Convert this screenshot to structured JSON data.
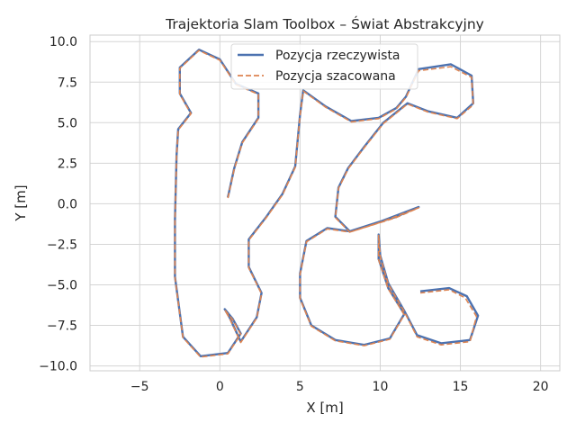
{
  "chart_data": {
    "type": "line",
    "title": "Trajektoria Slam Toolbox – Świat Abstrakcyjny",
    "xlabel": "X [m]",
    "ylabel": "Y [m]",
    "xlim": [
      -8.1,
      21.2
    ],
    "ylim": [
      -10.3,
      10.4
    ],
    "xticks": [
      -5,
      0,
      5,
      10,
      15,
      20
    ],
    "yticks": [
      -10.0,
      -7.5,
      -5.0,
      -2.5,
      0.0,
      2.5,
      5.0,
      7.5,
      10.0
    ],
    "xtick_labels": [
      "−5",
      "0",
      "5",
      "10",
      "15",
      "20"
    ],
    "ytick_labels": [
      "−10.0",
      "−7.5",
      "−5.0",
      "−2.5",
      "0.0",
      "2.5",
      "5.0",
      "7.5",
      "10.0"
    ],
    "grid": true,
    "legend_position": "upper center",
    "series": [
      {
        "name": "Pozycja rzeczywista",
        "color": "#4c72b0",
        "style": "solid",
        "points": [
          [
            0.5,
            0.4
          ],
          [
            0.9,
            2.2
          ],
          [
            1.4,
            3.8
          ],
          [
            2.4,
            5.3
          ],
          [
            2.4,
            6.8
          ],
          [
            1.0,
            7.4
          ],
          [
            0.0,
            8.9
          ],
          [
            -1.3,
            9.5
          ],
          [
            -2.5,
            8.4
          ],
          [
            -2.5,
            6.8
          ],
          [
            -1.8,
            5.6
          ],
          [
            -2.6,
            4.6
          ],
          [
            -2.7,
            3.0
          ],
          [
            -2.8,
            -1.0
          ],
          [
            -2.8,
            -4.5
          ],
          [
            -2.3,
            -8.2
          ],
          [
            -1.2,
            -9.4
          ],
          [
            0.5,
            -9.2
          ],
          [
            1.3,
            -8.0
          ],
          [
            0.8,
            -7.1
          ],
          [
            0.3,
            -6.5
          ],
          [
            0.6,
            -7.0
          ],
          [
            1.3,
            -8.5
          ],
          [
            2.3,
            -7.0
          ],
          [
            2.6,
            -5.5
          ],
          [
            1.8,
            -3.9
          ],
          [
            1.8,
            -2.2
          ],
          [
            2.9,
            -0.8
          ],
          [
            3.9,
            0.6
          ],
          [
            4.7,
            2.3
          ],
          [
            5.0,
            5.5
          ],
          [
            5.2,
            7.0
          ],
          [
            6.6,
            6.0
          ],
          [
            8.2,
            5.1
          ],
          [
            9.9,
            5.3
          ],
          [
            11.0,
            5.9
          ],
          [
            11.6,
            6.6
          ],
          [
            12.4,
            8.3
          ],
          [
            14.4,
            8.6
          ],
          [
            15.7,
            7.9
          ],
          [
            15.8,
            6.2
          ],
          [
            14.8,
            5.3
          ],
          [
            13.0,
            5.7
          ],
          [
            11.7,
            6.2
          ],
          [
            10.2,
            5.0
          ],
          [
            9.0,
            3.5
          ],
          [
            8.0,
            2.2
          ],
          [
            7.4,
            1.0
          ],
          [
            7.2,
            -0.8
          ],
          [
            8.1,
            -1.7
          ],
          [
            10.0,
            -1.1
          ],
          [
            12.4,
            -0.2
          ],
          [
            11.0,
            -0.8
          ],
          [
            8.1,
            -1.7
          ],
          [
            6.7,
            -1.5
          ],
          [
            5.4,
            -2.3
          ],
          [
            5.0,
            -4.3
          ],
          [
            5.0,
            -5.8
          ],
          [
            5.7,
            -7.5
          ],
          [
            7.2,
            -8.4
          ],
          [
            9.0,
            -8.7
          ],
          [
            10.6,
            -8.3
          ],
          [
            11.5,
            -6.8
          ],
          [
            10.5,
            -5.2
          ],
          [
            9.9,
            -3.4
          ],
          [
            9.9,
            -1.9
          ],
          [
            10.0,
            -3.2
          ],
          [
            10.5,
            -4.9
          ],
          [
            11.5,
            -6.6
          ],
          [
            12.3,
            -8.1
          ],
          [
            13.8,
            -8.6
          ],
          [
            15.6,
            -8.4
          ],
          [
            16.1,
            -6.9
          ],
          [
            15.4,
            -5.7
          ],
          [
            14.3,
            -5.2
          ],
          [
            12.5,
            -5.4
          ]
        ]
      },
      {
        "name": "Pozycja szacowana",
        "color": "#dd8452",
        "style": "dashed",
        "points": [
          [
            0.5,
            0.35
          ],
          [
            0.9,
            2.15
          ],
          [
            1.4,
            3.75
          ],
          [
            2.4,
            5.25
          ],
          [
            2.4,
            6.75
          ],
          [
            1.0,
            7.35
          ],
          [
            0.0,
            8.85
          ],
          [
            -1.3,
            9.45
          ],
          [
            -2.5,
            8.35
          ],
          [
            -2.5,
            6.75
          ],
          [
            -1.8,
            5.55
          ],
          [
            -2.6,
            4.55
          ],
          [
            -2.7,
            2.95
          ],
          [
            -2.8,
            -1.05
          ],
          [
            -2.8,
            -4.55
          ],
          [
            -2.3,
            -8.25
          ],
          [
            -1.2,
            -9.45
          ],
          [
            0.5,
            -9.25
          ],
          [
            1.3,
            -8.05
          ],
          [
            0.8,
            -7.15
          ],
          [
            0.3,
            -6.55
          ],
          [
            0.6,
            -7.05
          ],
          [
            1.3,
            -8.55
          ],
          [
            2.3,
            -7.05
          ],
          [
            2.6,
            -5.55
          ],
          [
            1.8,
            -3.95
          ],
          [
            1.8,
            -2.25
          ],
          [
            2.9,
            -0.85
          ],
          [
            3.9,
            0.55
          ],
          [
            4.7,
            2.25
          ],
          [
            5.0,
            5.45
          ],
          [
            5.2,
            6.95
          ],
          [
            6.6,
            5.95
          ],
          [
            8.2,
            5.05
          ],
          [
            9.9,
            5.25
          ],
          [
            11.0,
            5.85
          ],
          [
            11.6,
            6.55
          ],
          [
            12.4,
            8.2
          ],
          [
            14.4,
            8.45
          ],
          [
            15.7,
            7.8
          ],
          [
            15.8,
            6.1
          ],
          [
            14.8,
            5.25
          ],
          [
            13.0,
            5.65
          ],
          [
            11.7,
            6.15
          ],
          [
            10.2,
            4.95
          ],
          [
            9.0,
            3.45
          ],
          [
            8.0,
            2.15
          ],
          [
            7.4,
            0.95
          ],
          [
            7.2,
            -0.85
          ],
          [
            8.1,
            -1.75
          ],
          [
            10.0,
            -1.15
          ],
          [
            12.4,
            -0.25
          ],
          [
            11.0,
            -0.85
          ],
          [
            8.1,
            -1.75
          ],
          [
            6.7,
            -1.55
          ],
          [
            5.4,
            -2.35
          ],
          [
            5.0,
            -4.35
          ],
          [
            5.0,
            -5.85
          ],
          [
            5.7,
            -7.55
          ],
          [
            7.2,
            -8.45
          ],
          [
            9.0,
            -8.75
          ],
          [
            10.6,
            -8.35
          ],
          [
            11.5,
            -6.85
          ],
          [
            10.5,
            -5.25
          ],
          [
            9.9,
            -3.45
          ],
          [
            9.9,
            -1.95
          ],
          [
            10.0,
            -3.25
          ],
          [
            10.5,
            -4.95
          ],
          [
            11.5,
            -6.65
          ],
          [
            12.3,
            -8.2
          ],
          [
            13.8,
            -8.7
          ],
          [
            15.6,
            -8.5
          ],
          [
            16.0,
            -6.95
          ],
          [
            15.3,
            -5.8
          ],
          [
            14.3,
            -5.3
          ],
          [
            12.5,
            -5.5
          ]
        ]
      }
    ]
  }
}
